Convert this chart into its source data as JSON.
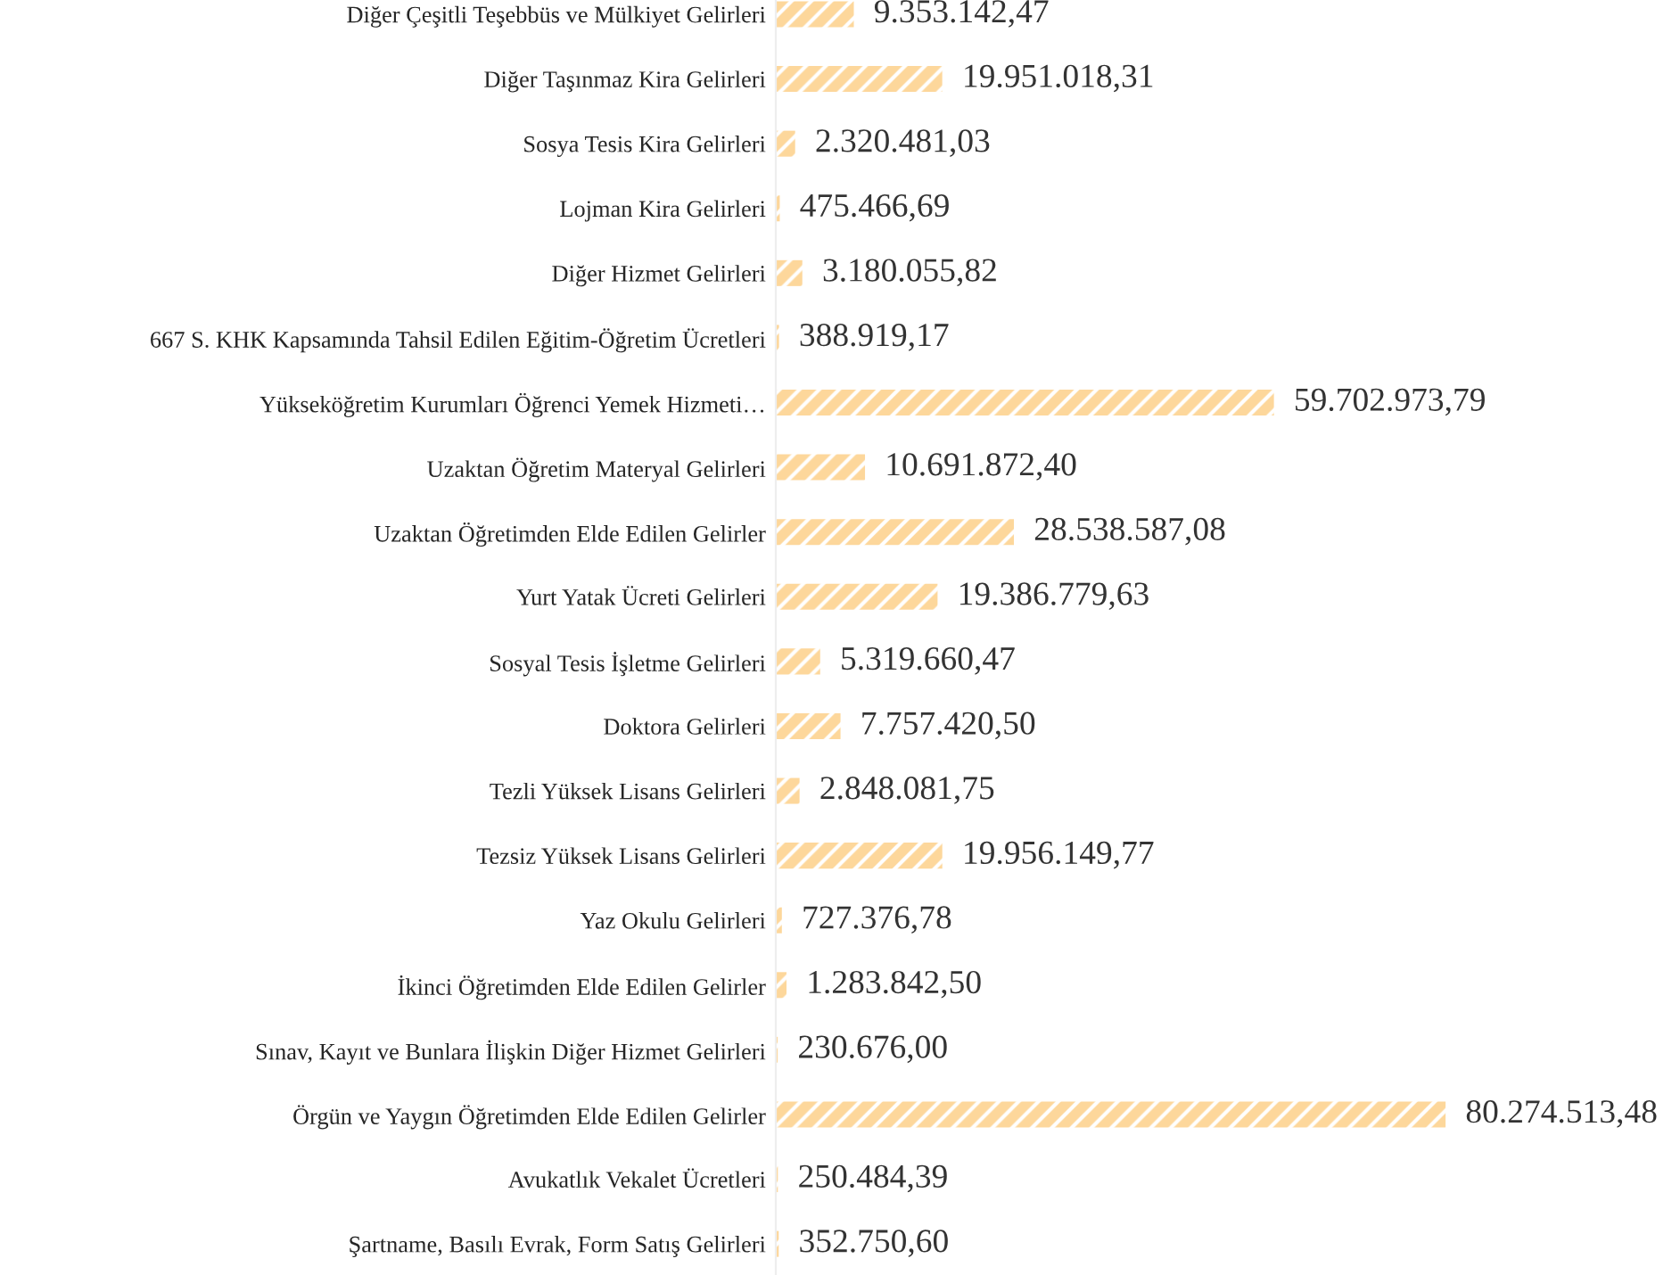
{
  "chart_data": {
    "type": "bar",
    "orientation": "horizontal",
    "color": "#fdd79b",
    "categories": [
      "Diğer Çeşitli Teşebbüs ve Mülkiyet Gelirleri",
      "Diğer Taşınmaz Kira Gelirleri",
      "Sosya Tesis Kira Gelirleri",
      "Lojman Kira Gelirleri",
      "Diğer Hizmet Gelirleri",
      "667 S. KHK Kapsamında Tahsil Edilen Eğitim-Öğretim Ücretleri",
      "Yükseköğretim Kurumları Öğrenci Yemek Hizmeti…",
      "Uzaktan Öğretim Materyal Gelirleri",
      "Uzaktan Öğretimden Elde Edilen Gelirler",
      "Yurt Yatak Ücreti Gelirleri",
      "Sosyal Tesis İşletme Gelirleri",
      "Doktora Gelirleri",
      "Tezli Yüksek Lisans Gelirleri",
      "Tezsiz Yüksek Lisans Gelirleri",
      "Yaz Okulu Gelirleri",
      "İkinci Öğretimden Elde Edilen Gelirler",
      "Sınav, Kayıt ve Bunlara İlişkin Diğer Hizmet Gelirleri",
      "Örgün ve Yaygın Öğretimden Elde Edilen Gelirler",
      "Avukatlık Vekalet Ücretleri",
      "Şartname, Basılı Evrak, Form Satış Gelirleri"
    ],
    "values": [
      9353142.47,
      19951018.31,
      2320481.03,
      475466.69,
      3180055.82,
      388919.17,
      59702973.79,
      10691872.4,
      28538587.08,
      19386779.63,
      5319660.47,
      7757420.5,
      2848081.75,
      19956149.77,
      727376.78,
      1283842.5,
      230676.0,
      80274513.48,
      250484.39,
      352750.6
    ],
    "value_labels": [
      "9.353.142,47",
      "19.951.018,31",
      "2.320.481,03",
      "475.466,69",
      "3.180.055,82",
      "388.919,17",
      "59.702.973,79",
      "10.691.872,40",
      "28.538.587,08",
      "19.386.779,63",
      "5.319.660,47",
      "7.757.420,50",
      "2.848.081,75",
      "19.956.149,77",
      "727.376,78",
      "1.283.842,50",
      "230.676,00",
      "80.274.513,48",
      "250.484,39",
      "352.750,60"
    ],
    "grid": false,
    "legend": false
  }
}
